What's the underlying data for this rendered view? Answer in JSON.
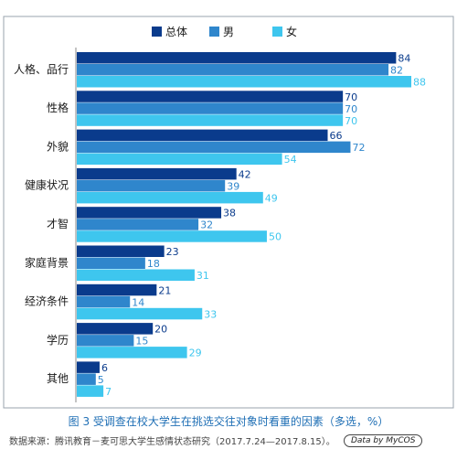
{
  "chart_data": {
    "type": "bar",
    "orientation": "horizontal",
    "categories": [
      "人格、品行",
      "性格",
      "外貌",
      "健康状况",
      "才智",
      "家庭背景",
      "经济条件",
      "学历",
      "其他"
    ],
    "series": [
      {
        "name": "总体",
        "color": "#0a3b8c",
        "values": [
          84,
          70,
          66,
          42,
          38,
          23,
          21,
          20,
          6
        ]
      },
      {
        "name": "男",
        "color": "#2f86cc",
        "values": [
          82,
          70,
          72,
          39,
          32,
          18,
          14,
          15,
          5
        ]
      },
      {
        "name": "女",
        "color": "#3ec6ee",
        "values": [
          88,
          70,
          54,
          49,
          50,
          31,
          33,
          29,
          7
        ]
      }
    ],
    "xlim": [
      0,
      88
    ],
    "legend": "top",
    "grid": false
  },
  "caption": "图 3  受调查在校大学生在挑选交往对象时看重的因素（多选，%）",
  "source": "数据来源：腾讯教育－麦可思大学生感情状态研究（2017.7.24—2017.8.15）。",
  "watermark": "Data by MyCOS"
}
